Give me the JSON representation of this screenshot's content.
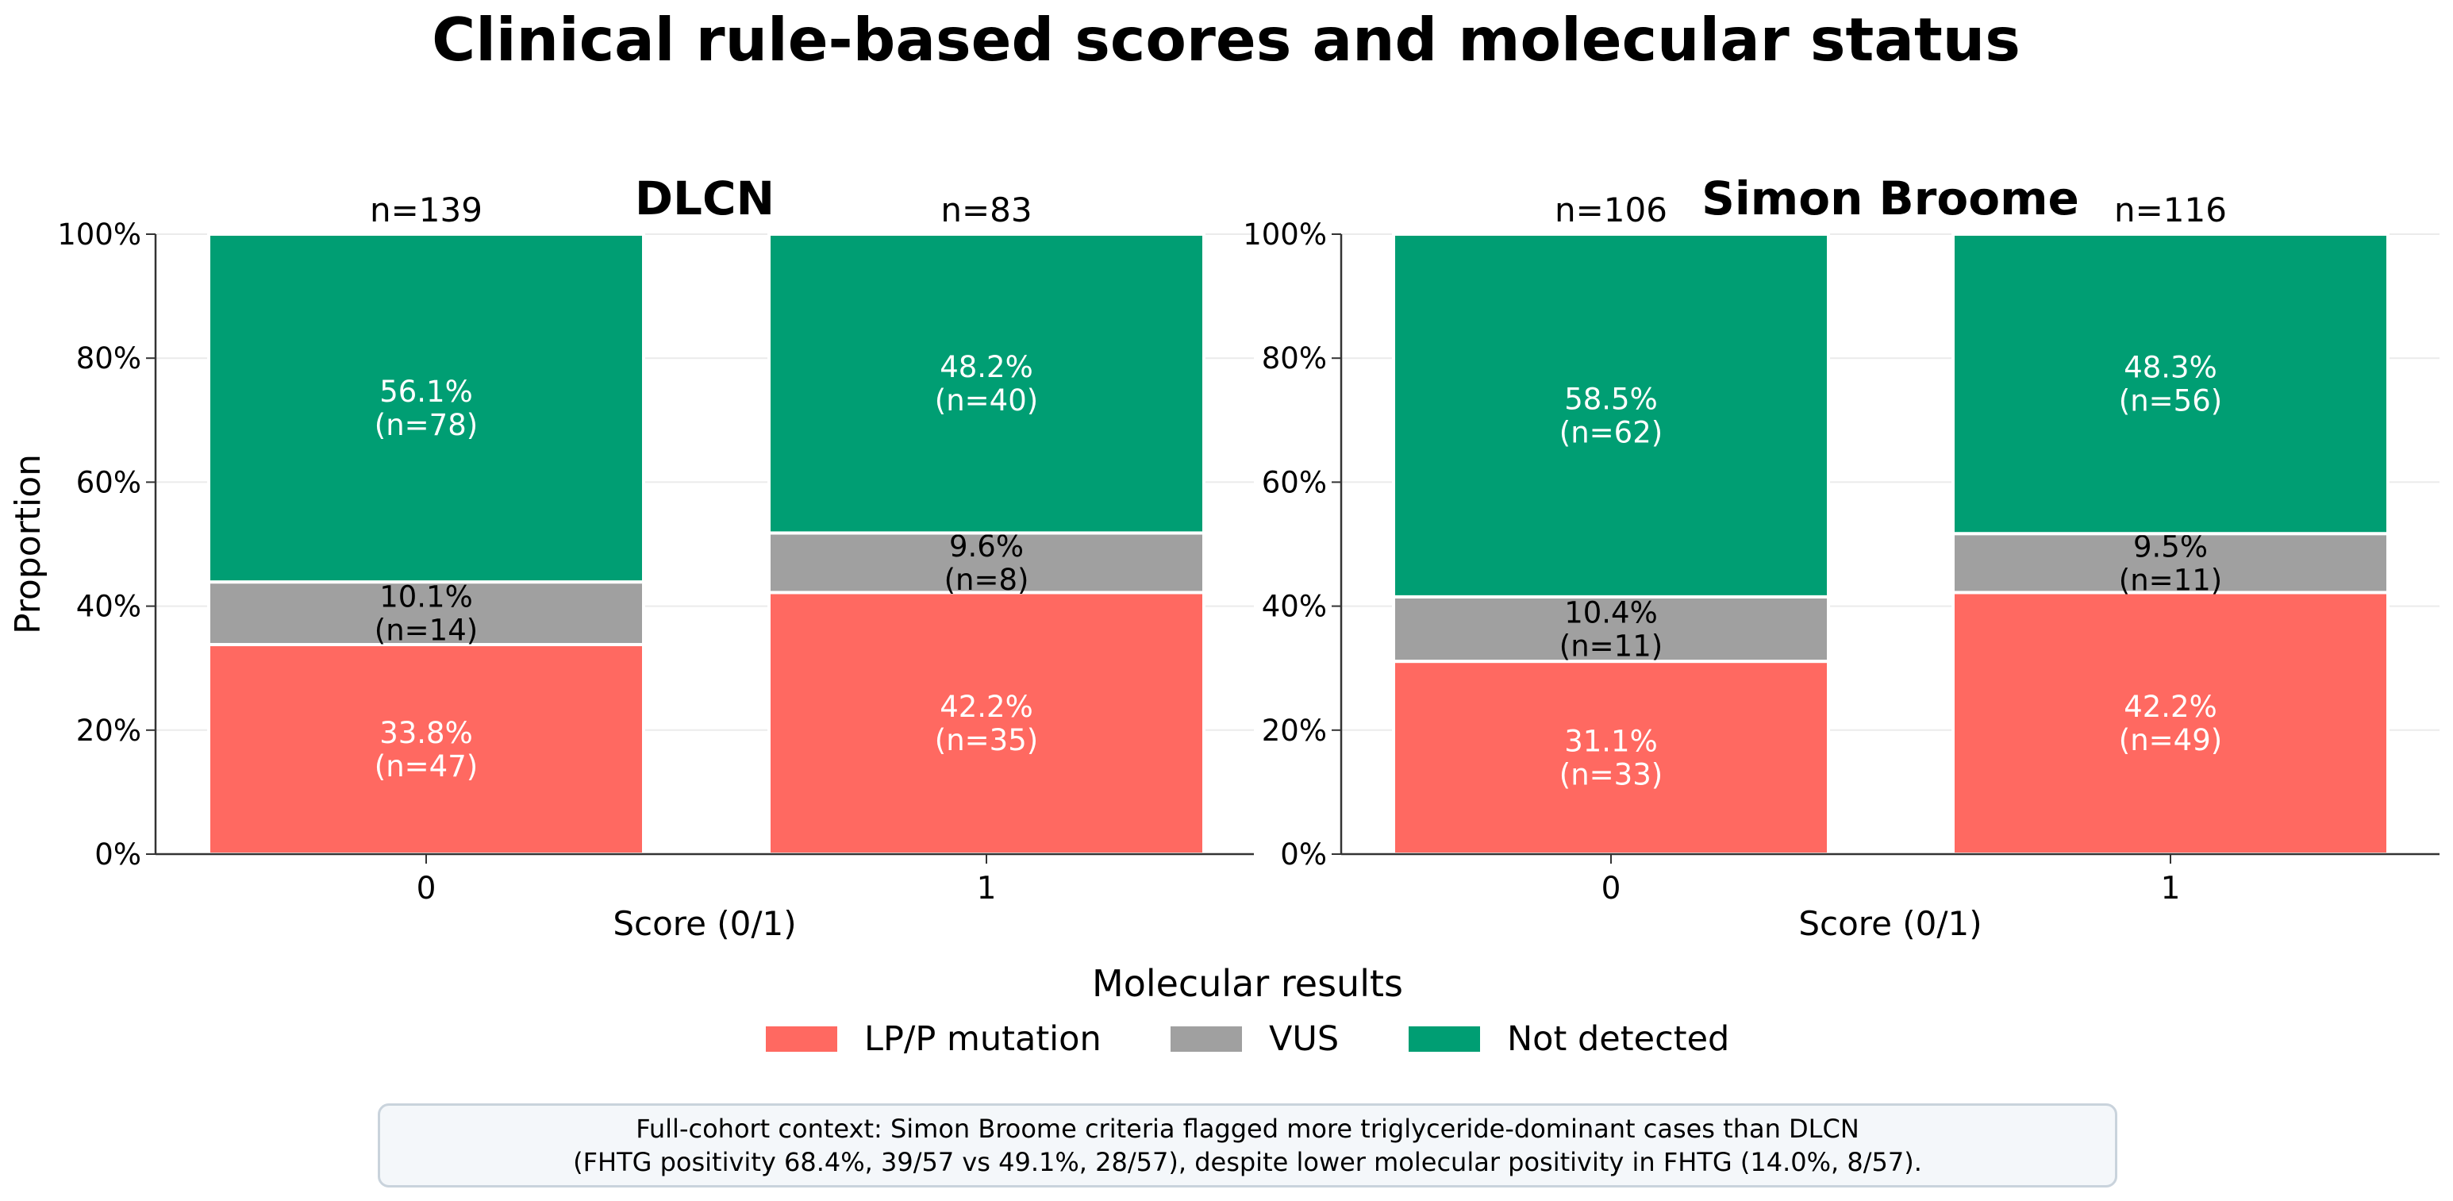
{
  "title": "Clinical rule-based scores and molecular status",
  "colors": {
    "lp_p": "#FF6961",
    "vus": "#A0A0A0",
    "not_detected": "#009E73",
    "axis": "#333333",
    "grid": "#ebebeb"
  },
  "chart_data": [
    {
      "type": "bar",
      "stacked": true,
      "normalized": true,
      "title": "DLCN",
      "xlabel": "Score (0/1)",
      "ylabel": "Proportion",
      "ylim": [
        0,
        1
      ],
      "yticks": [
        "0%",
        "20%",
        "40%",
        "60%",
        "80%",
        "100%"
      ],
      "grid": "horizontal",
      "categories": [
        "0",
        "1"
      ],
      "totals": [
        "n=139",
        "n=83"
      ],
      "series": [
        {
          "name": "LP/P mutation",
          "values": [
            0.338,
            0.422
          ],
          "labels": [
            "33.8%\n(n=47)",
            "42.2%\n(n=35)"
          ]
        },
        {
          "name": "VUS",
          "values": [
            0.101,
            0.096
          ],
          "labels": [
            "10.1%\n(n=14)",
            "9.6%\n(n=8)"
          ]
        },
        {
          "name": "Not detected",
          "values": [
            0.561,
            0.482
          ],
          "labels": [
            "56.1%\n(n=78)",
            "48.2%\n(n=40)"
          ]
        }
      ]
    },
    {
      "type": "bar",
      "stacked": true,
      "normalized": true,
      "title": "Simon Broome",
      "xlabel": "Score (0/1)",
      "ylabel": "",
      "ylim": [
        0,
        1
      ],
      "yticks": [
        "0%",
        "20%",
        "40%",
        "60%",
        "80%",
        "100%"
      ],
      "grid": "horizontal",
      "categories": [
        "0",
        "1"
      ],
      "totals": [
        "n=106",
        "n=116"
      ],
      "series": [
        {
          "name": "LP/P mutation",
          "values": [
            0.311,
            0.422
          ],
          "labels": [
            "31.1%\n(n=33)",
            "42.2%\n(n=49)"
          ]
        },
        {
          "name": "VUS",
          "values": [
            0.104,
            0.095
          ],
          "labels": [
            "10.4%\n(n=11)",
            "9.5%\n(n=11)"
          ]
        },
        {
          "name": "Not detected",
          "values": [
            0.585,
            0.483
          ],
          "labels": [
            "58.5%\n(n=62)",
            "48.3%\n(n=56)"
          ]
        }
      ]
    }
  ],
  "legend": {
    "title": "Molecular results",
    "placement": "bottom-center",
    "items": [
      {
        "label": "LP/P mutation",
        "color": "#FF6961"
      },
      {
        "label": "VUS",
        "color": "#A0A0A0"
      },
      {
        "label": "Not detected",
        "color": "#009E73"
      }
    ]
  },
  "note": {
    "line1": "Full-cohort context: Simon Broome criteria flagged more triglyceride-dominant cases than DLCN",
    "line2": "(FHTG positivity 68.4%, 39/57 vs 49.1%, 28/57), despite lower molecular positivity in FHTG (14.0%, 8/57)."
  }
}
